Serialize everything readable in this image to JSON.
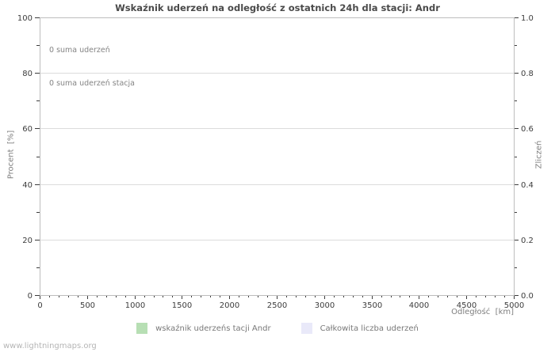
{
  "chart_data": {
    "type": "line",
    "title": "Wskaźnik uderzeń na odległość z ostatnich 24h dla stacji: Andr",
    "xlabel": "Odległość  [km]",
    "ylabel_left": "Procent  [%]",
    "ylabel_right": "Zliczeń",
    "xlim": [
      0,
      5000
    ],
    "ylim_left": [
      0,
      100
    ],
    "ylim_right": [
      0.0,
      1.0
    ],
    "x_major_ticks": [
      0,
      500,
      1000,
      1500,
      2000,
      2500,
      3000,
      3500,
      4000,
      4500,
      5000
    ],
    "x_minor_step": 100,
    "y_major_ticks_left": [
      0,
      20,
      40,
      60,
      80,
      100
    ],
    "y_minor_ticks_left": [
      10,
      30,
      50,
      70,
      90
    ],
    "y_major_tick_labels_right": [
      "0.0",
      "0.2",
      "0.4",
      "0.6",
      "0.8",
      "1.0"
    ],
    "grid": "horizontal-major-only",
    "legend_position": "bottom-center",
    "series": [
      {
        "name": "wskaźnik uderzeńs tacji Andr",
        "color": "#b7dfb4",
        "values": []
      },
      {
        "name": "Całkowita liczba uderzeń",
        "color": "#e9e9f9",
        "values": []
      }
    ],
    "annotations": [
      "0 suma uderzeń",
      "0 suma uderzeń stacja"
    ],
    "colors": {
      "plot_border": "#bdbdbd",
      "gridline": "#dcdcdc",
      "tick": "#3c3c3c"
    }
  },
  "footer": {
    "watermark": "www.lightningmaps.org"
  }
}
